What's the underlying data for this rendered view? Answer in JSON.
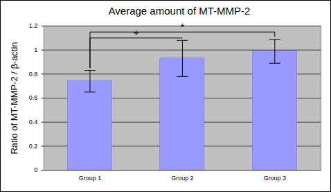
{
  "chart_data": {
    "type": "bar",
    "title": "Average amount of MT-MMP-2",
    "y_label": "Ratio of MT-MMP-2 / β-actin",
    "categories": [
      "Group 1",
      "Group 2",
      "Group 3"
    ],
    "values": [
      0.74,
      0.93,
      0.99
    ],
    "errors": [
      0.09,
      0.15,
      0.1
    ],
    "color": "#9999ff",
    "ylim": [
      0,
      1.2
    ],
    "yticks": [
      0,
      0.2,
      0.4,
      0.6,
      0.8,
      1,
      1.2
    ],
    "grid": true,
    "annotations": [
      {
        "text": "+",
        "from": "Group 1",
        "to": "Group 2"
      },
      {
        "text": "*",
        "from": "Group 1",
        "to": "Group 3"
      }
    ]
  }
}
